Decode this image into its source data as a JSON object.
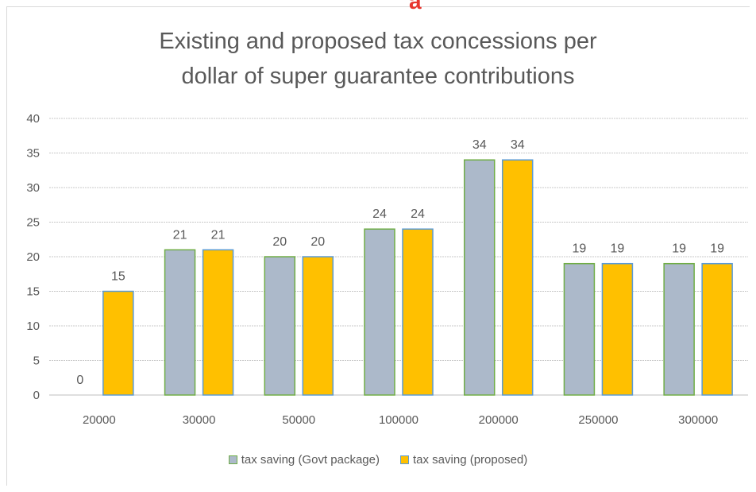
{
  "header": {
    "fragment": "a"
  },
  "chart_data": {
    "type": "bar",
    "title": "Existing and proposed tax concessions per dollar of super guarantee contributions",
    "title_lines": [
      "Existing and proposed tax concessions per",
      "dollar of super guarantee contributions"
    ],
    "categories": [
      "20000",
      "30000",
      "50000",
      "100000",
      "200000",
      "250000",
      "300000"
    ],
    "series": [
      {
        "name": "tax saving (Govt package)",
        "values": [
          0,
          21,
          20,
          24,
          34,
          19,
          19
        ],
        "color": "#acb9ca",
        "border": "#70ad47"
      },
      {
        "name": "tax saving (proposed)",
        "values": [
          15,
          21,
          20,
          24,
          34,
          19,
          19
        ],
        "color": "#ffc000",
        "border": "#5b9bd5"
      }
    ],
    "ylim": [
      0,
      40
    ],
    "yticks": [
      0,
      5,
      10,
      15,
      20,
      25,
      30,
      35,
      40
    ],
    "grid": true,
    "legend": "bottom",
    "xlabel": "",
    "ylabel": ""
  }
}
